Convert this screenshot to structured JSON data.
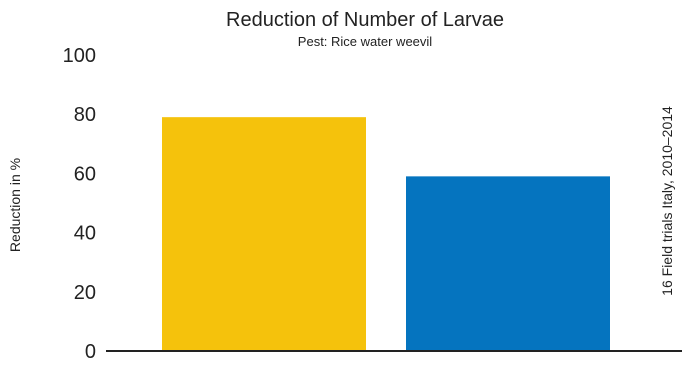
{
  "chart_data": {
    "type": "bar",
    "title": "Reduction of Number of Larvae",
    "subtitle": "Pest: Rice water weevil",
    "ylabel": "Reduction in %",
    "xlabel": "",
    "annotation": "16 Field trials Italy, 2010–2014",
    "ylim": [
      0,
      100
    ],
    "yticks": [
      0,
      20,
      40,
      60,
      80,
      100
    ],
    "categories": [
      "",
      ""
    ],
    "values": [
      79,
      59
    ],
    "bar_colors": [
      "#f5c20c",
      "#0574bf"
    ],
    "grid": false,
    "legend": "none"
  },
  "colors": {
    "text": "#222222",
    "axis": "#222222"
  }
}
